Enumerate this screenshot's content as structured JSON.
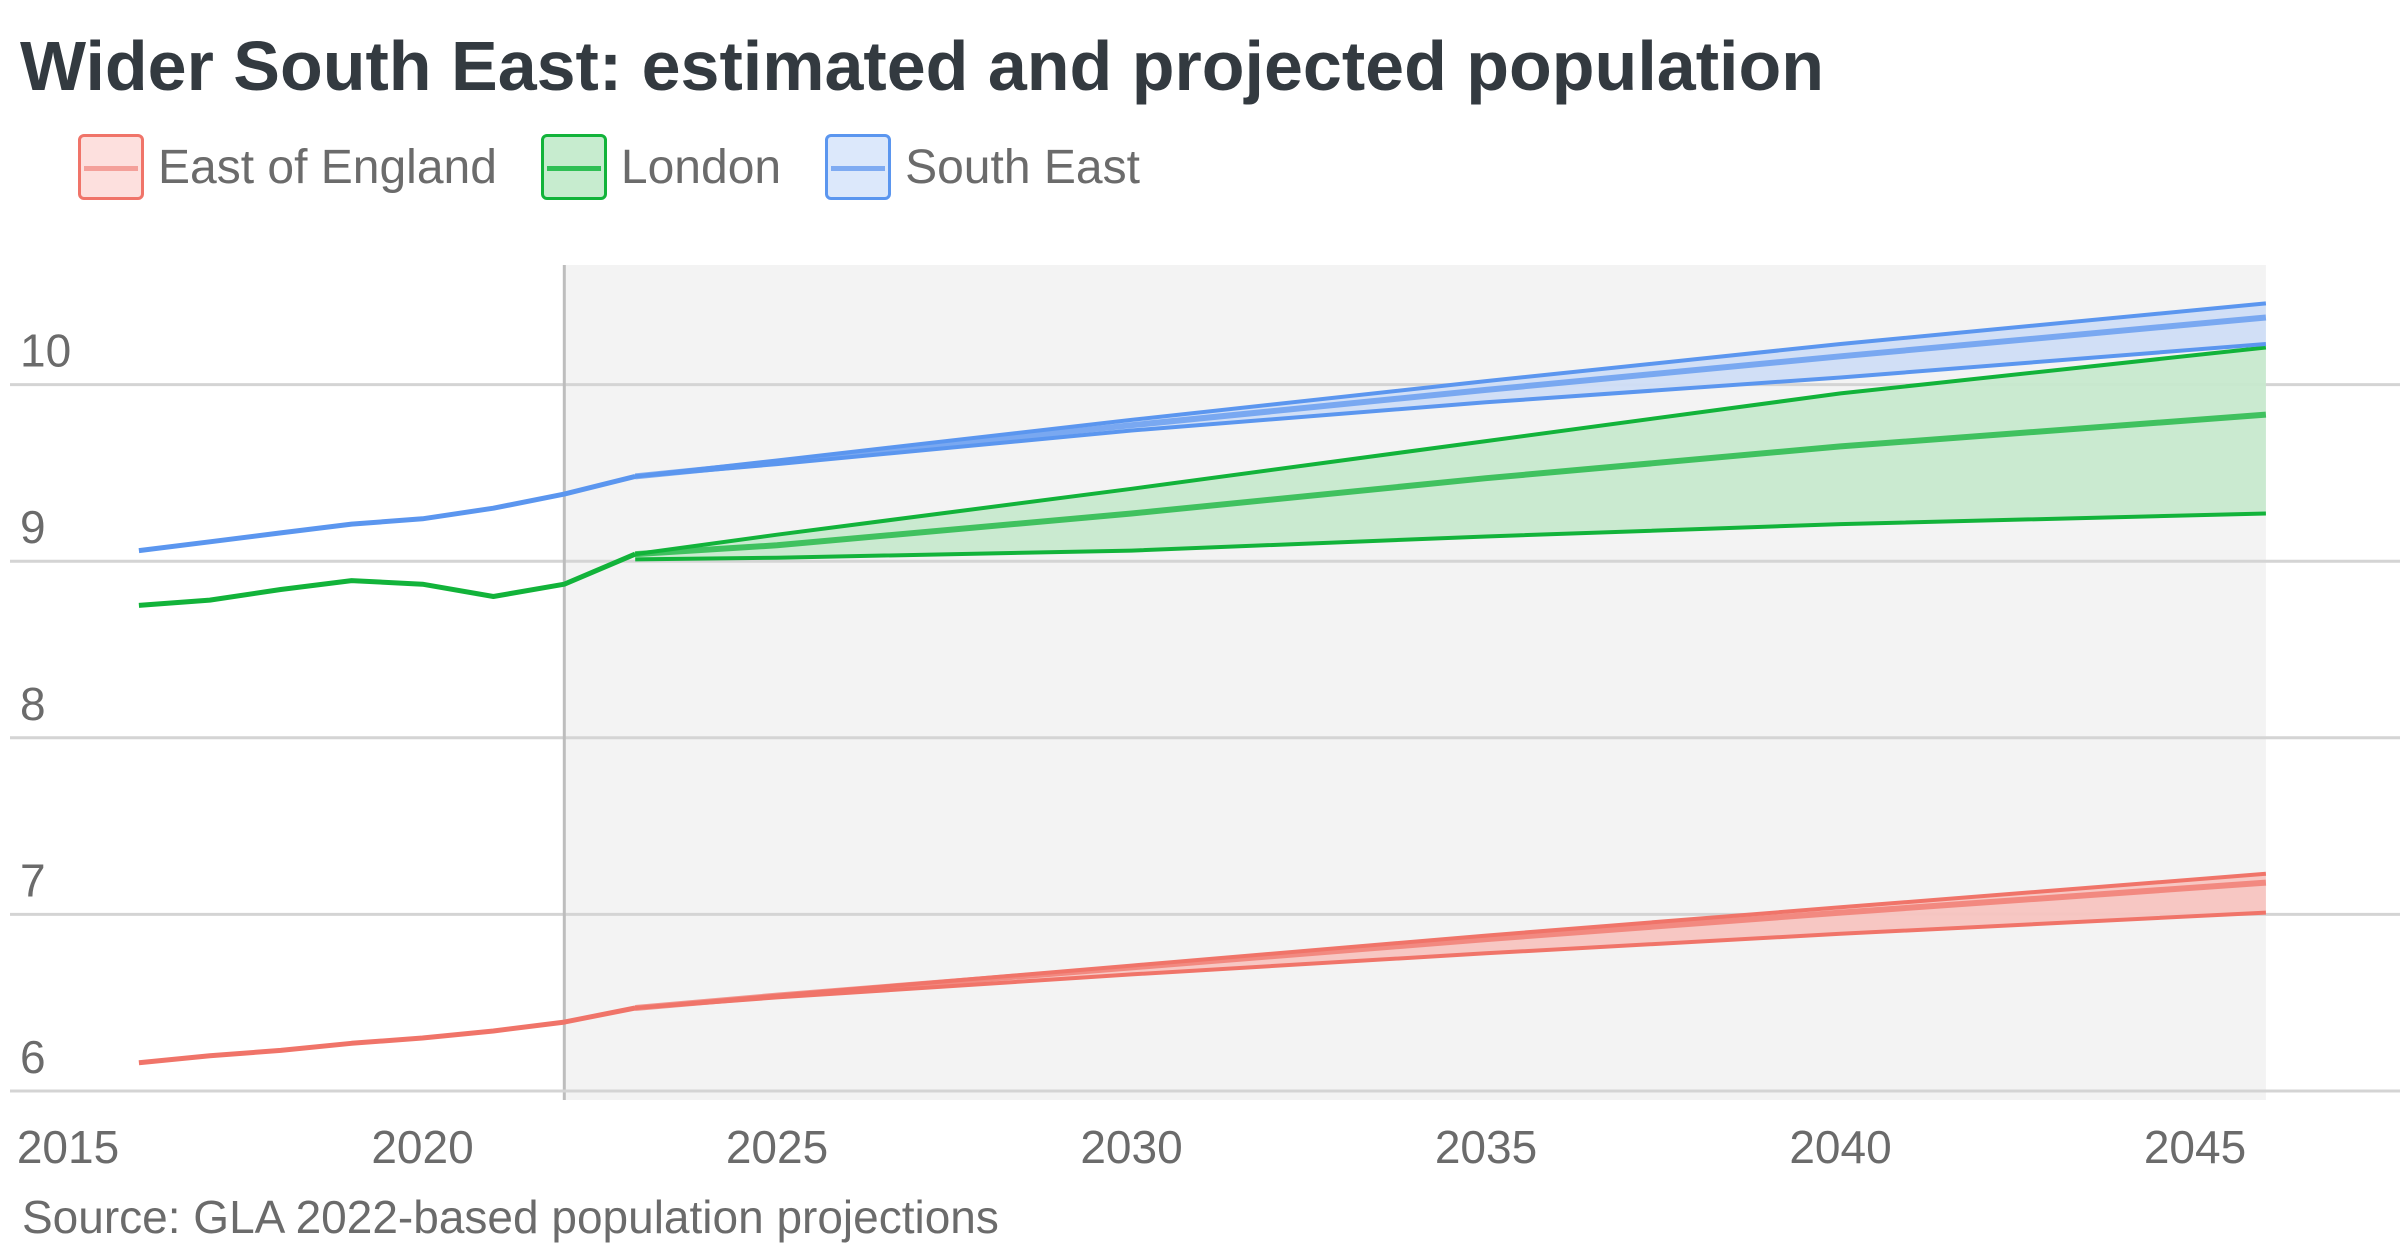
{
  "title": "Wider South East: estimated and projected population",
  "source": "Source: GLA 2022-based population projections",
  "chart_data": {
    "type": "line",
    "title": "Wider South East: estimated and projected population",
    "xlabel": "",
    "ylabel": "",
    "xlim": [
      2015,
      2046.5
    ],
    "ylim": [
      5.9,
      10.7
    ],
    "x_ticks": [
      "2015",
      "2020",
      "2025",
      "2030",
      "2035",
      "2040",
      "2045"
    ],
    "y_ticks": [
      "6",
      "7",
      "8",
      "9",
      "10"
    ],
    "grid": true,
    "legend_position": "top-left",
    "projection_start": 2022,
    "projection_shaded_region": [
      2022,
      2046
    ],
    "series": [
      {
        "name": "East of England",
        "color": "#f07469",
        "fill": "#f7c4c0",
        "history_x": [
          2016,
          2017,
          2018,
          2019,
          2020,
          2021,
          2022,
          2023
        ],
        "history_y": [
          6.16,
          6.2,
          6.23,
          6.27,
          6.3,
          6.34,
          6.39,
          6.47
        ],
        "projection_x": [
          2023,
          2025,
          2030,
          2035,
          2040,
          2046
        ],
        "central": [
          6.47,
          6.54,
          6.7,
          6.86,
          7.01,
          7.18
        ],
        "low": [
          6.47,
          6.53,
          6.66,
          6.78,
          6.89,
          7.01
        ],
        "high": [
          6.47,
          6.54,
          6.71,
          6.88,
          7.04,
          7.23
        ]
      },
      {
        "name": "London",
        "color": "#12b33a",
        "fill": "#c7e9cd",
        "history_x": [
          2016,
          2017,
          2018,
          2019,
          2020,
          2021,
          2022,
          2023
        ],
        "history_y": [
          8.75,
          8.78,
          8.84,
          8.89,
          8.87,
          8.8,
          8.87,
          9.04
        ],
        "projection_x": [
          2023,
          2025,
          2030,
          2035,
          2040,
          2046
        ],
        "central": [
          9.04,
          9.09,
          9.27,
          9.47,
          9.65,
          9.83
        ],
        "low": [
          9.01,
          9.02,
          9.06,
          9.14,
          9.21,
          9.27
        ],
        "high": [
          9.04,
          9.15,
          9.41,
          9.68,
          9.95,
          10.21
        ]
      },
      {
        "name": "South East",
        "color": "#5b96ef",
        "fill": "#cfddf5",
        "history_x": [
          2016,
          2017,
          2018,
          2019,
          2020,
          2021,
          2022,
          2023
        ],
        "history_y": [
          9.06,
          9.11,
          9.16,
          9.21,
          9.24,
          9.3,
          9.38,
          9.48
        ],
        "projection_x": [
          2023,
          2025,
          2030,
          2035,
          2040,
          2046
        ],
        "central": [
          9.48,
          9.56,
          9.77,
          9.97,
          10.16,
          10.38
        ],
        "low": [
          9.48,
          9.55,
          9.74,
          9.9,
          10.04,
          10.23
        ],
        "high": [
          9.48,
          9.57,
          9.8,
          10.02,
          10.23,
          10.46
        ]
      }
    ]
  }
}
